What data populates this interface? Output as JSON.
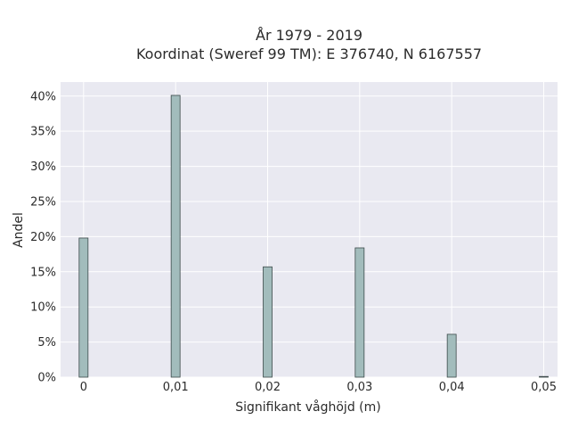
{
  "chart_data": {
    "type": "bar",
    "title_line1": "År 1979 - 2019",
    "title_line2": "Koordinat (Sweref 99 TM): E 376740, N 6167557",
    "xlabel": "Signifikant våghöjd (m)",
    "ylabel": "Andel",
    "x_ticks": [
      "0",
      "0,01",
      "0,02",
      "0,03",
      "0,04",
      "0,05"
    ],
    "y_ticks": [
      "0%",
      "5%",
      "10%",
      "15%",
      "20%",
      "25%",
      "30%",
      "35%",
      "40%"
    ],
    "x": [
      0,
      0.01,
      0.02,
      0.03,
      0.04,
      0.05
    ],
    "values": [
      19.8,
      40.1,
      15.7,
      18.4,
      6.1,
      0.1
    ],
    "xlim": [
      -0.0025,
      0.0515
    ],
    "ylim": [
      0,
      42
    ],
    "grid": true,
    "colors": {
      "bar_fill": "#a2bcbc",
      "bar_stroke": "#3c4a4a",
      "plot_background": "#e9e9f1",
      "grid": "#ffffff"
    }
  }
}
